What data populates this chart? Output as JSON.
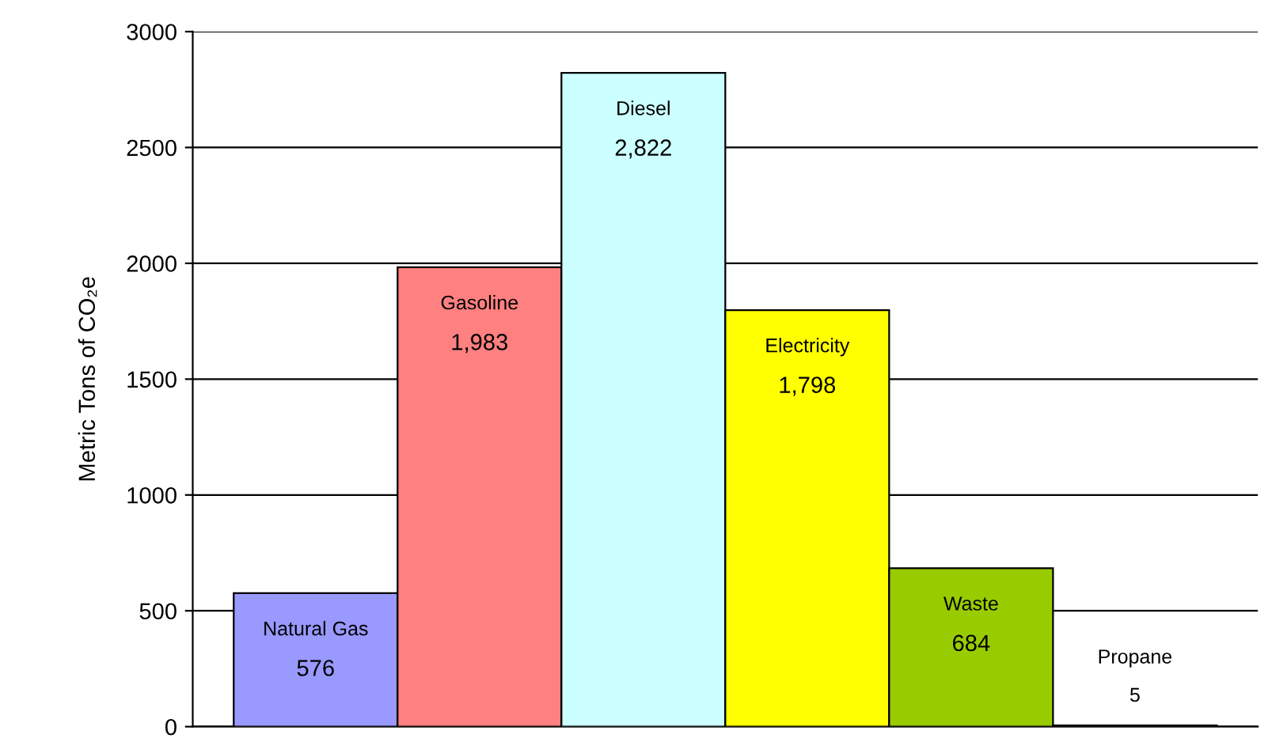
{
  "chart_data": {
    "type": "bar",
    "ylabel": "Metric Tons of CO₂e",
    "categories": [
      null,
      null,
      null,
      null,
      null,
      null
    ],
    "annotations": [
      "Natural Gas",
      "Gasoline",
      "Diesel",
      "Electricity",
      "Waste",
      "Propane"
    ],
    "values": [
      576,
      1983,
      2822,
      1798,
      684,
      5
    ],
    "colors": [
      "#9999ff",
      "#ff8080",
      "#ccffff",
      "#ffff00",
      "#99cc00",
      "#993366"
    ],
    "value_labels": [
      "576",
      "1,983",
      "2,822",
      "1,798",
      "684",
      "5"
    ],
    "ylim": [
      0,
      3000
    ],
    "yticks": [
      0,
      500,
      1000,
      1500,
      2000,
      2500,
      3000
    ],
    "grid": "y",
    "legend": false
  }
}
